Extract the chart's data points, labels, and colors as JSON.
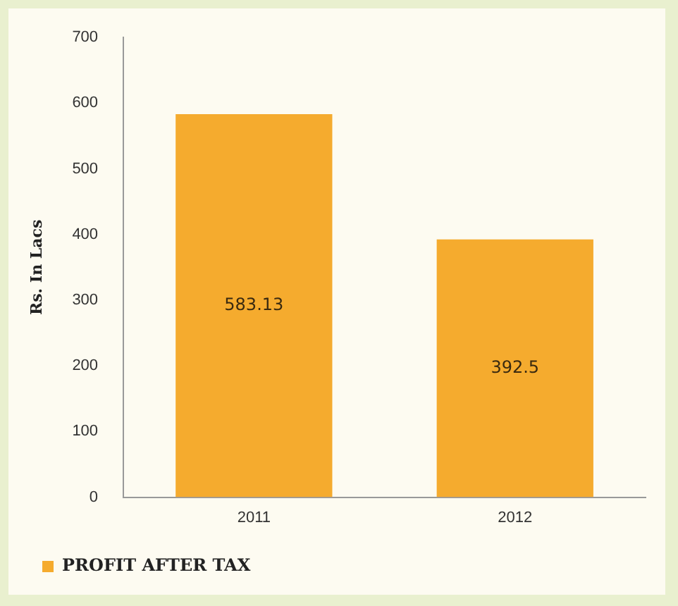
{
  "chart_data": {
    "type": "bar",
    "ylabel": "Rs. In Lacs",
    "categories": [
      "2011",
      "2012"
    ],
    "series": [
      {
        "name": "PROFIT AFTER TAX",
        "color": "#f5ab2e",
        "values": [
          583.13,
          392.5
        ]
      }
    ],
    "ylim": [
      0,
      700
    ],
    "yticks": [
      0,
      100,
      200,
      300,
      400,
      500,
      600,
      700
    ],
    "grid": false,
    "legend": "bottom",
    "data_labels": true
  }
}
